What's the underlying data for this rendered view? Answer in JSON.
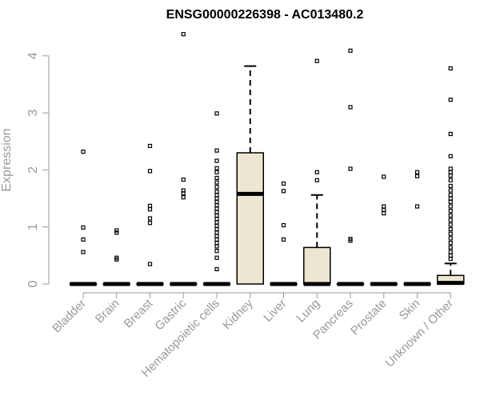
{
  "chart_data": {
    "type": "boxplot",
    "title": "ENSG00000226398 - AC013480.2",
    "ylabel": "Expression",
    "xlabel": "",
    "ylim": [
      0,
      4.4
    ],
    "yticks": [
      0,
      1,
      2,
      3,
      4
    ],
    "grid": false,
    "legend": "none",
    "colors": {
      "box_fill": "#ede7d1",
      "stroke": "#000000",
      "axis_text": "#999999"
    },
    "categories": [
      "Bladder",
      "Brain",
      "Breast",
      "Gastric",
      "Hematopoietic cells",
      "Kidney",
      "Liver",
      "Lung",
      "Pancreas",
      "Prostate",
      "Skin",
      "Unknown / Other"
    ],
    "boxes": [
      {
        "category": "Bladder",
        "q1": 0,
        "median": 0,
        "q3": 0,
        "whisker_low": 0,
        "whisker_high": 0,
        "outliers": [
          2.32,
          0.99,
          0.78,
          0.56
        ]
      },
      {
        "category": "Brain",
        "q1": 0,
        "median": 0,
        "q3": 0,
        "whisker_low": 0,
        "whisker_high": 0,
        "outliers": [
          0.94,
          0.9,
          0.46,
          0.43
        ]
      },
      {
        "category": "Breast",
        "q1": 0,
        "median": 0,
        "q3": 0,
        "whisker_low": 0,
        "whisker_high": 0,
        "outliers": [
          2.42,
          1.98,
          1.37,
          1.31,
          1.15,
          1.07,
          0.35
        ]
      },
      {
        "category": "Gastric",
        "q1": 0,
        "median": 0,
        "q3": 0,
        "whisker_low": 0,
        "whisker_high": 0,
        "outliers": [
          4.38,
          1.83,
          1.64,
          1.59,
          1.52
        ]
      },
      {
        "category": "Hematopoietic cells",
        "q1": 0,
        "median": 0,
        "q3": 0,
        "whisker_low": 0,
        "whisker_high": 0,
        "outliers": [
          2.99,
          2.34,
          2.16,
          2.03,
          1.96,
          1.86,
          1.78,
          1.7,
          1.62,
          1.56,
          1.5,
          1.44,
          1.38,
          1.32,
          1.26,
          1.2,
          1.14,
          1.08,
          1.02,
          0.96,
          0.9,
          0.84,
          0.78,
          0.72,
          0.66,
          0.58,
          0.46,
          0.26
        ]
      },
      {
        "category": "Kidney",
        "q1": 0,
        "median": 1.58,
        "q3": 2.3,
        "whisker_low": 0,
        "whisker_high": 3.82,
        "outliers": []
      },
      {
        "category": "Liver",
        "q1": 0,
        "median": 0,
        "q3": 0,
        "whisker_low": 0,
        "whisker_high": 0,
        "outliers": [
          1.76,
          1.63,
          1.03,
          0.78
        ]
      },
      {
        "category": "Lung",
        "q1": 0,
        "median": 0,
        "q3": 0.64,
        "whisker_low": 0,
        "whisker_high": 1.56,
        "outliers": [
          3.91,
          1.96,
          1.82
        ]
      },
      {
        "category": "Pancreas",
        "q1": 0,
        "median": 0,
        "q3": 0,
        "whisker_low": 0,
        "whisker_high": 0,
        "outliers": [
          4.09,
          3.1,
          2.02,
          0.79,
          0.76
        ]
      },
      {
        "category": "Prostate",
        "q1": 0,
        "median": 0,
        "q3": 0,
        "whisker_low": 0,
        "whisker_high": 0,
        "outliers": [
          1.88,
          1.36,
          1.3,
          1.24
        ]
      },
      {
        "category": "Skin",
        "q1": 0,
        "median": 0,
        "q3": 0,
        "whisker_low": 0,
        "whisker_high": 0,
        "outliers": [
          1.96,
          1.89,
          1.36
        ]
      },
      {
        "category": "Unknown / Other",
        "q1": 0,
        "median": 0.02,
        "q3": 0.15,
        "whisker_low": 0,
        "whisker_high": 0.36,
        "outliers": [
          3.78,
          3.23,
          2.63,
          2.24,
          2.02,
          1.96,
          1.9,
          1.82,
          1.72,
          1.64,
          1.56,
          1.5,
          1.44,
          1.36,
          1.28,
          1.2,
          1.12,
          1.04,
          0.96,
          0.88,
          0.8,
          0.72,
          0.64,
          0.56,
          0.5,
          0.44
        ]
      }
    ]
  }
}
